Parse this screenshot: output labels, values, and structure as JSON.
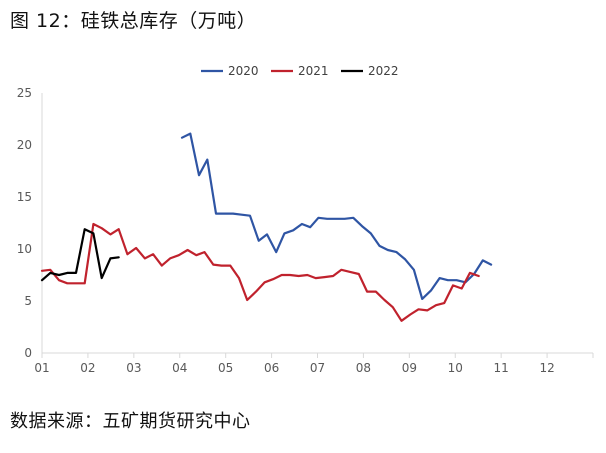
{
  "page": {
    "title": "图 12：硅铁总库存（万吨）",
    "source": "数据来源：五矿期货研究中心"
  },
  "colors": {
    "2020": "#2f55a4",
    "2021": "#c0222d",
    "2022": "#000000",
    "axis": "#d9d9d9",
    "tick_text": "#595959"
  },
  "chart_data": {
    "type": "line",
    "title": "",
    "xlabel": "",
    "ylabel": "",
    "ylim": [
      0,
      25
    ],
    "yticks": [
      0,
      5,
      10,
      15,
      20,
      25
    ],
    "xlim": [
      1,
      13
    ],
    "xticks": [
      {
        "x": 1,
        "label": "01"
      },
      {
        "x": 2,
        "label": "02"
      },
      {
        "x": 3,
        "label": "03"
      },
      {
        "x": 4,
        "label": "04"
      },
      {
        "x": 5,
        "label": "05"
      },
      {
        "x": 6,
        "label": "06"
      },
      {
        "x": 7,
        "label": "07"
      },
      {
        "x": 8,
        "label": "08"
      },
      {
        "x": 9,
        "label": "09"
      },
      {
        "x": 10,
        "label": "10"
      },
      {
        "x": 11,
        "label": "11"
      },
      {
        "x": 12,
        "label": "12"
      }
    ],
    "grid": false,
    "legend_position": "top-center",
    "series": [
      {
        "name": "2020",
        "color": "#2f55a4",
        "points": [
          [
            4.05,
            20.7
          ],
          [
            4.23,
            21.1
          ],
          [
            4.42,
            17.1
          ],
          [
            4.6,
            18.6
          ],
          [
            4.79,
            13.4
          ],
          [
            4.97,
            13.4
          ],
          [
            5.16,
            13.4
          ],
          [
            5.35,
            13.3
          ],
          [
            5.53,
            13.2
          ],
          [
            5.72,
            10.8
          ],
          [
            5.9,
            11.4
          ],
          [
            6.1,
            9.7
          ],
          [
            6.28,
            11.5
          ],
          [
            6.47,
            11.8
          ],
          [
            6.66,
            12.4
          ],
          [
            6.84,
            12.1
          ],
          [
            7.02,
            13.0
          ],
          [
            7.21,
            12.9
          ],
          [
            7.4,
            12.9
          ],
          [
            7.59,
            12.9
          ],
          [
            7.78,
            13.0
          ],
          [
            7.97,
            12.2
          ],
          [
            8.16,
            11.5
          ],
          [
            8.35,
            10.3
          ],
          [
            8.53,
            9.9
          ],
          [
            8.72,
            9.7
          ],
          [
            8.91,
            9.0
          ],
          [
            9.1,
            8.0
          ],
          [
            9.28,
            5.2
          ],
          [
            9.47,
            6.0
          ],
          [
            9.66,
            7.2
          ],
          [
            9.84,
            7.0
          ],
          [
            10.03,
            7.0
          ],
          [
            10.22,
            6.8
          ],
          [
            10.41,
            7.6
          ],
          [
            10.6,
            8.9
          ],
          [
            10.78,
            8.5
          ]
        ]
      },
      {
        "name": "2021",
        "color": "#c0222d",
        "points": [
          [
            1.0,
            7.9
          ],
          [
            1.18,
            8.0
          ],
          [
            1.37,
            7.0
          ],
          [
            1.55,
            6.7
          ],
          [
            1.74,
            6.7
          ],
          [
            1.93,
            6.7
          ],
          [
            2.12,
            12.4
          ],
          [
            2.3,
            12.0
          ],
          [
            2.49,
            11.4
          ],
          [
            2.67,
            11.9
          ],
          [
            2.86,
            9.5
          ],
          [
            3.05,
            10.1
          ],
          [
            3.24,
            9.1
          ],
          [
            3.42,
            9.5
          ],
          [
            3.61,
            8.4
          ],
          [
            3.79,
            9.1
          ],
          [
            3.98,
            9.4
          ],
          [
            4.17,
            9.9
          ],
          [
            4.36,
            9.4
          ],
          [
            4.54,
            9.7
          ],
          [
            4.73,
            8.5
          ],
          [
            4.91,
            8.4
          ],
          [
            5.1,
            8.4
          ],
          [
            5.29,
            7.2
          ],
          [
            5.47,
            5.1
          ],
          [
            5.66,
            5.9
          ],
          [
            5.85,
            6.8
          ],
          [
            6.03,
            7.1
          ],
          [
            6.22,
            7.5
          ],
          [
            6.4,
            7.5
          ],
          [
            6.59,
            7.4
          ],
          [
            6.78,
            7.5
          ],
          [
            6.96,
            7.2
          ],
          [
            7.15,
            7.3
          ],
          [
            7.34,
            7.4
          ],
          [
            7.52,
            8.0
          ],
          [
            7.71,
            7.8
          ],
          [
            7.9,
            7.6
          ],
          [
            8.08,
            5.9
          ],
          [
            8.27,
            5.9
          ],
          [
            8.46,
            5.1
          ],
          [
            8.64,
            4.4
          ],
          [
            8.83,
            3.1
          ],
          [
            9.02,
            3.7
          ],
          [
            9.2,
            4.2
          ],
          [
            9.39,
            4.1
          ],
          [
            9.58,
            4.6
          ],
          [
            9.76,
            4.8
          ],
          [
            9.95,
            6.5
          ],
          [
            10.14,
            6.2
          ],
          [
            10.32,
            7.7
          ],
          [
            10.51,
            7.4
          ]
        ]
      },
      {
        "name": "2022",
        "color": "#000000",
        "points": [
          [
            1.0,
            7.0
          ],
          [
            1.18,
            7.7
          ],
          [
            1.37,
            7.5
          ],
          [
            1.55,
            7.7
          ],
          [
            1.74,
            7.7
          ],
          [
            1.93,
            11.9
          ],
          [
            2.12,
            11.5
          ],
          [
            2.3,
            7.2
          ],
          [
            2.49,
            9.1
          ],
          [
            2.67,
            9.2
          ]
        ]
      }
    ]
  }
}
